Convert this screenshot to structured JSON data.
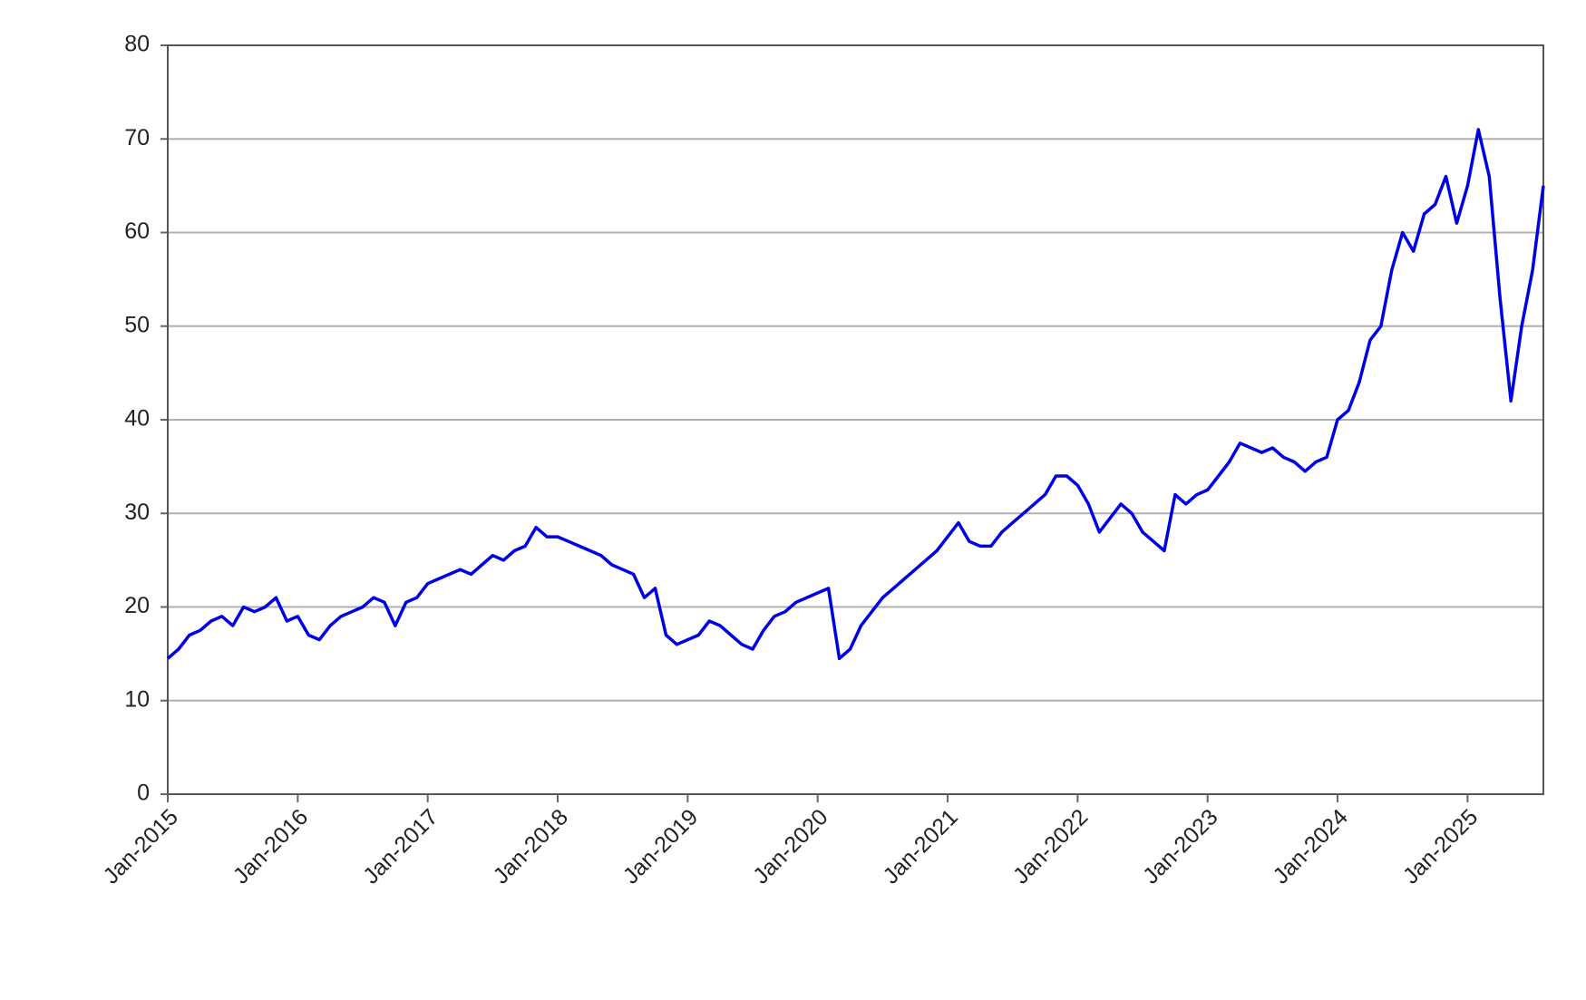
{
  "chart_data": {
    "type": "line",
    "x": [
      "2015-01",
      "2015-02",
      "2015-03",
      "2015-04",
      "2015-05",
      "2015-06",
      "2015-07",
      "2015-08",
      "2015-09",
      "2015-10",
      "2015-11",
      "2015-12",
      "2016-01",
      "2016-02",
      "2016-03",
      "2016-04",
      "2016-05",
      "2016-06",
      "2016-07",
      "2016-08",
      "2016-09",
      "2016-10",
      "2016-11",
      "2016-12",
      "2017-01",
      "2017-02",
      "2017-03",
      "2017-04",
      "2017-05",
      "2017-06",
      "2017-07",
      "2017-08",
      "2017-09",
      "2017-10",
      "2017-11",
      "2017-12",
      "2018-01",
      "2018-02",
      "2018-03",
      "2018-04",
      "2018-05",
      "2018-06",
      "2018-07",
      "2018-08",
      "2018-09",
      "2018-10",
      "2018-11",
      "2018-12",
      "2019-01",
      "2019-02",
      "2019-03",
      "2019-04",
      "2019-05",
      "2019-06",
      "2019-07",
      "2019-08",
      "2019-09",
      "2019-10",
      "2019-11",
      "2019-12",
      "2020-01",
      "2020-02",
      "2020-03",
      "2020-04",
      "2020-05",
      "2020-06",
      "2020-07",
      "2020-08",
      "2020-09",
      "2020-10",
      "2020-11",
      "2020-12",
      "2021-01",
      "2021-02",
      "2021-03",
      "2021-04",
      "2021-05",
      "2021-06",
      "2021-07",
      "2021-08",
      "2021-09",
      "2021-10",
      "2021-11",
      "2021-12",
      "2022-01",
      "2022-02",
      "2022-03",
      "2022-04",
      "2022-05",
      "2022-06",
      "2022-07",
      "2022-08",
      "2022-09",
      "2022-10",
      "2022-11",
      "2022-12",
      "2023-01",
      "2023-02",
      "2023-03",
      "2023-04",
      "2023-05",
      "2023-06",
      "2023-07",
      "2023-08",
      "2023-09",
      "2023-10",
      "2023-11",
      "2023-12",
      "2024-01",
      "2024-02",
      "2024-03",
      "2024-04",
      "2024-05",
      "2024-06",
      "2024-07",
      "2024-08",
      "2024-09",
      "2024-10",
      "2024-11",
      "2024-12",
      "2025-01",
      "2025-02",
      "2025-03",
      "2025-04",
      "2025-05",
      "2025-06",
      "2025-07",
      "2025-08"
    ],
    "series": [
      {
        "color": "#0000e6",
        "values": [
          14.5,
          15.5,
          17,
          17.5,
          18.5,
          19,
          18,
          20,
          19.5,
          20,
          21,
          18.5,
          19,
          17,
          16.5,
          18,
          19,
          19.5,
          20,
          21,
          20.5,
          18,
          20.5,
          21,
          22.5,
          23,
          23.5,
          24,
          23.5,
          24.5,
          25.5,
          25,
          26,
          26.5,
          28.5,
          27.5,
          27.5,
          27,
          26.5,
          26,
          25.5,
          24.5,
          24,
          23.5,
          21,
          22,
          17,
          16,
          16.5,
          17,
          18.5,
          18,
          17,
          16,
          15.5,
          17.5,
          19,
          19.5,
          20.5,
          21,
          21.5,
          22,
          14.5,
          15.5,
          18,
          19.5,
          21,
          22,
          23,
          24,
          25,
          26,
          27.5,
          29,
          27,
          26.5,
          26.5,
          28,
          29,
          30,
          31,
          32,
          34,
          34,
          33,
          31,
          28,
          29.5,
          31,
          30,
          28,
          27,
          26,
          32,
          31,
          32,
          32.5,
          34,
          35.5,
          37.5,
          37,
          36.5,
          37,
          36,
          35.5,
          34.5,
          35.5,
          36,
          40,
          41,
          44,
          48.5,
          50,
          56,
          60,
          58,
          62,
          63,
          66,
          61,
          65,
          71,
          66,
          53,
          42,
          50,
          56,
          65
        ]
      }
    ],
    "xlim": [
      "2015-01",
      "2025-08"
    ],
    "xticks": [
      {
        "value": "2015-01",
        "label": "Jan-2015"
      },
      {
        "value": "2016-01",
        "label": "Jan-2016"
      },
      {
        "value": "2017-01",
        "label": "Jan-2017"
      },
      {
        "value": "2018-01",
        "label": "Jan-2018"
      },
      {
        "value": "2019-01",
        "label": "Jan-2019"
      },
      {
        "value": "2020-01",
        "label": "Jan-2020"
      },
      {
        "value": "2021-01",
        "label": "Jan-2021"
      },
      {
        "value": "2022-01",
        "label": "Jan-2022"
      },
      {
        "value": "2023-01",
        "label": "Jan-2023"
      },
      {
        "value": "2024-01",
        "label": "Jan-2024"
      },
      {
        "value": "2025-01",
        "label": "Jan-2025"
      }
    ],
    "ylim": [
      0,
      80
    ],
    "yticks": [
      0,
      10,
      20,
      30,
      40,
      50,
      60,
      70,
      80
    ],
    "grid": true
  }
}
